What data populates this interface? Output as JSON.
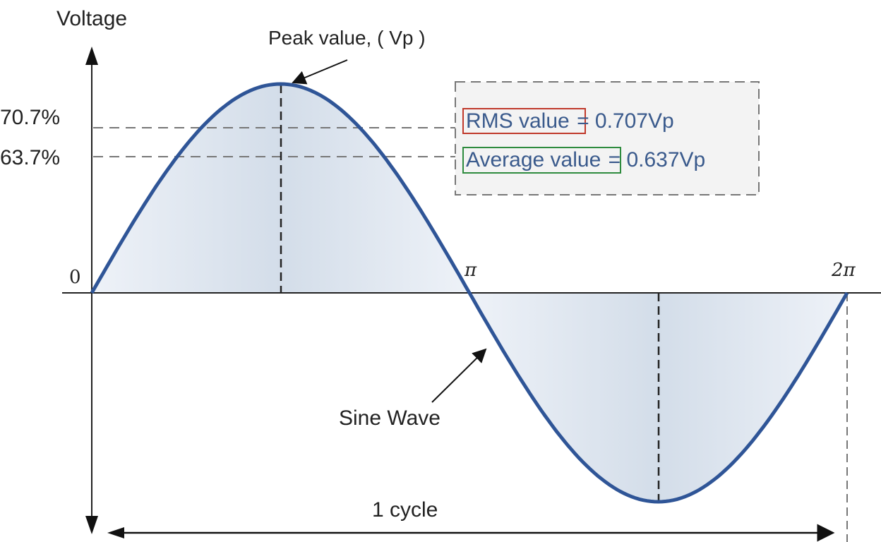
{
  "labels": {
    "y_axis": "Voltage",
    "peak": "Peak value, ( Vp )",
    "sine_wave": "Sine Wave",
    "cycle": "1 cycle",
    "zero": "0",
    "pi": "π",
    "two_pi": "2π",
    "pct_rms": "70.7%",
    "pct_avg": "63.7%"
  },
  "legend_box": {
    "rms_label": "RMS value",
    "rms_eq": "= 0.707Vp",
    "avg_label": "Average value",
    "avg_eq": "= 0.637Vp"
  },
  "colors": {
    "wave": "#2f5597",
    "fill": "#c9d6e6",
    "rms_border": "#c0392b",
    "avg_border": "#2e8b3e"
  },
  "chart_data": {
    "type": "line",
    "function": "sine",
    "x_range": [
      0,
      6.2832
    ],
    "y_range": [
      -1,
      1
    ],
    "amplitude": 1,
    "reference_levels": [
      0.707,
      0.637
    ],
    "x_ticks": [
      "0",
      "π",
      "2π"
    ]
  }
}
